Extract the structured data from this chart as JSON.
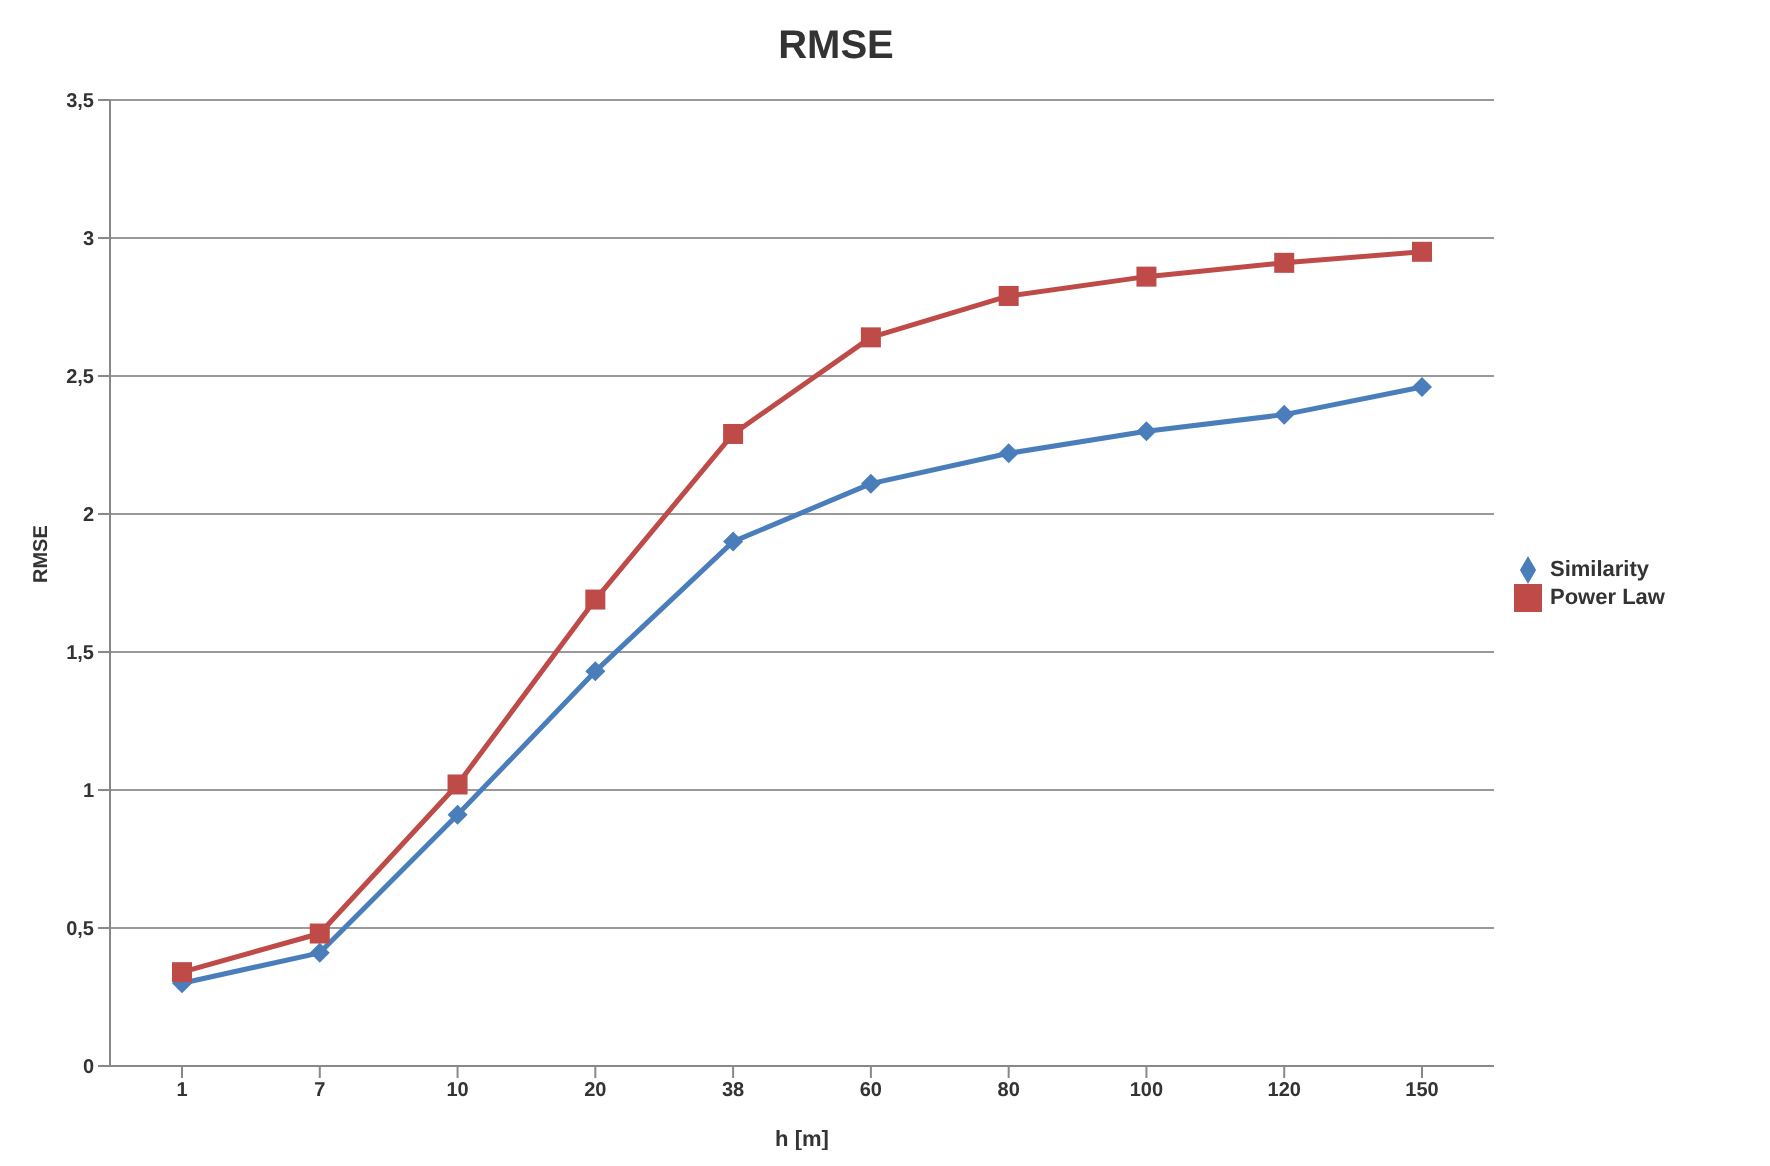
{
  "chart_data": {
    "type": "line",
    "title": "RMSE",
    "xlabel": "h  [m]",
    "ylabel": "RMSE",
    "categories": [
      "1",
      "7",
      "10",
      "20",
      "38",
      "60",
      "80",
      "100",
      "120",
      "150"
    ],
    "series": [
      {
        "name": "Similarity",
        "color": "#4a7ebb",
        "marker": "diamond",
        "values": [
          0.3,
          0.41,
          0.91,
          1.43,
          1.9,
          2.11,
          2.22,
          2.3,
          2.36,
          2.46
        ]
      },
      {
        "name": "Power Law",
        "color": "#be4b48",
        "marker": "square",
        "values": [
          0.34,
          0.48,
          1.02,
          1.69,
          2.29,
          2.64,
          2.79,
          2.86,
          2.91,
          2.95
        ]
      }
    ],
    "ylim": [
      0,
      3.5
    ],
    "yticks": [
      0,
      {
        "value": 0.5,
        "label": "0,5"
      },
      1,
      {
        "value": 1.5,
        "label": "1,5"
      },
      2,
      {
        "value": 2.5,
        "label": "2,5"
      },
      3,
      {
        "value": 3.5,
        "label": "3,5"
      }
    ],
    "grid": "y",
    "legend": "right",
    "line_style": "solid"
  }
}
